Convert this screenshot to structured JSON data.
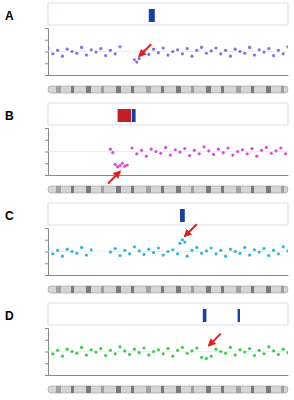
{
  "chart_data": [
    {
      "type": "scatter",
      "title": "A",
      "color": "#8a6de0",
      "xlim": [
        0,
        100
      ],
      "ylim": [
        -2,
        2
      ],
      "yticks": [
        -1,
        0,
        1
      ],
      "tick_labels": false,
      "x": [
        0,
        2,
        4,
        6,
        8,
        10,
        12,
        14,
        16,
        18,
        20,
        22,
        24,
        26,
        28,
        30,
        36,
        37,
        38,
        40,
        42,
        44,
        46,
        48,
        50,
        52,
        54,
        56,
        58,
        60,
        62,
        64,
        66,
        68,
        70,
        72,
        74,
        76,
        78,
        80,
        82,
        84,
        86,
        88,
        90,
        92,
        94,
        96,
        98,
        100
      ],
      "values": [
        0.3,
        -0.2,
        0.1,
        -0.4,
        0.2,
        0,
        -0.15,
        0.35,
        -0.3,
        0.15,
        -0.05,
        0.25,
        -0.35,
        0.1,
        -0.2,
        0.4,
        -0.7,
        -0.9,
        -0.6,
        0.05,
        -0.25,
        0.2,
        -0.1,
        0.3,
        -0.3,
        0,
        0.15,
        -0.2,
        0.25,
        -0.4,
        0.1,
        0.35,
        -0.15,
        0.05,
        0.3,
        -0.2,
        0.1,
        -0.4,
        0.2,
        0,
        -0.15,
        0.35,
        -0.3,
        0.15,
        -0.05,
        0.25,
        -0.35,
        0.1,
        -0.2,
        0.4
      ],
      "segments": [
        {
          "start": 42,
          "end": 44.5,
          "color": "#1a3fa0"
        }
      ],
      "annotations": [
        {
          "x": 38,
          "y": -0.4
        }
      ]
    },
    {
      "type": "scatter",
      "title": "B",
      "color": "#d94fd9",
      "xlim": [
        0,
        100
      ],
      "ylim": [
        -2,
        2
      ],
      "yticks": [
        -1,
        0,
        1
      ],
      "tick_labels": false,
      "x": [
        26,
        27,
        28,
        29,
        30,
        31,
        32,
        33,
        35,
        37,
        39,
        41,
        43,
        45,
        47,
        49,
        51,
        53,
        55,
        57,
        59,
        61,
        63,
        65,
        67,
        69,
        71,
        73,
        75,
        77,
        79,
        81,
        83,
        85,
        87,
        89,
        91,
        93,
        95,
        97,
        99
      ],
      "values": [
        0.2,
        -0.1,
        -1.1,
        -1.3,
        -1.2,
        -1.0,
        -1.25,
        -1.15,
        0.3,
        -0.2,
        0.1,
        -0.4,
        0.2,
        0,
        -0.15,
        0.35,
        -0.3,
        0.15,
        -0.05,
        0.25,
        -0.35,
        0.1,
        -0.2,
        0.4,
        0.05,
        -0.25,
        0.2,
        -0.1,
        0.3,
        -0.3,
        0,
        0.15,
        -0.2,
        0.25,
        -0.4,
        0.1,
        0.35,
        -0.15,
        0.05,
        0.3,
        -0.2
      ],
      "segments": [
        {
          "start": 29,
          "end": 34.7,
          "color": "#c0202a"
        },
        {
          "start": 35,
          "end": 36.5,
          "color": "#1a3fa0"
        }
      ],
      "annotations": [
        {
          "x": 30,
          "y": -1.7
        }
      ]
    },
    {
      "type": "scatter",
      "title": "C",
      "color": "#33b5d6",
      "xlim": [
        0,
        100
      ],
      "ylim": [
        -2,
        2
      ],
      "yticks": [
        -1,
        0,
        1
      ],
      "tick_labels": false,
      "x": [
        0,
        2,
        4,
        6,
        8,
        10,
        12,
        14,
        16,
        18,
        26,
        28,
        30,
        32,
        34,
        36,
        38,
        40,
        42,
        44,
        46,
        48,
        50,
        52,
        54,
        55,
        56,
        57,
        58,
        60,
        62,
        64,
        66,
        68,
        70,
        72,
        74,
        76,
        78,
        80,
        82,
        84,
        86,
        88,
        90,
        92,
        94,
        96,
        98,
        100
      ],
      "values": [
        0.3,
        -0.2,
        0.1,
        -0.4,
        0.2,
        0,
        -0.15,
        0.35,
        -0.3,
        0.15,
        -0.05,
        0.25,
        -0.35,
        0.1,
        -0.2,
        0.4,
        0.05,
        -0.25,
        0.2,
        -0.1,
        0.3,
        -0.3,
        0,
        0.15,
        -0.2,
        0.7,
        1.0,
        0.8,
        -0.4,
        0.1,
        0.35,
        -0.15,
        0.05,
        0.3,
        -0.2,
        0.1,
        -0.4,
        0.2,
        0,
        -0.15,
        0.35,
        -0.3,
        0.15,
        -0.05,
        0.25,
        -0.35,
        0.1,
        -0.2,
        0.4,
        0.05
      ],
      "segments": [
        {
          "start": 55,
          "end": 57,
          "color": "#1a3fa0"
        }
      ],
      "annotations": [
        {
          "x": 57,
          "y": 1.3
        }
      ]
    },
    {
      "type": "scatter",
      "title": "D",
      "color": "#3dcc4a",
      "xlim": [
        0,
        100
      ],
      "ylim": [
        -2,
        2
      ],
      "yticks": [
        -1,
        0,
        1
      ],
      "tick_labels": false,
      "x": [
        0,
        2,
        4,
        6,
        8,
        10,
        12,
        14,
        16,
        18,
        20,
        22,
        24,
        26,
        28,
        30,
        32,
        34,
        36,
        38,
        40,
        42,
        44,
        46,
        48,
        50,
        52,
        54,
        56,
        58,
        60,
        62,
        64,
        66,
        68,
        70,
        72,
        74,
        76,
        78,
        80,
        82,
        84,
        86,
        88,
        90,
        92,
        94,
        96,
        98,
        100
      ],
      "values": [
        0.3,
        -0.2,
        0.1,
        -0.4,
        0.2,
        0,
        -0.15,
        0.35,
        -0.3,
        0.15,
        -0.05,
        0.25,
        -0.35,
        0.1,
        -0.2,
        0.4,
        0.05,
        -0.25,
        0.2,
        -0.1,
        0.3,
        -0.3,
        0,
        0.15,
        -0.2,
        0.25,
        -0.4,
        0.1,
        0.35,
        -0.15,
        0.05,
        0.3,
        -0.5,
        -0.6,
        -0.4,
        0.2,
        0,
        -0.15,
        0.35,
        -0.3,
        0.15,
        -0.05,
        0.25,
        -0.35,
        0.1,
        -0.2,
        0.4,
        0.05,
        -0.25,
        0.2,
        -0.1
      ],
      "segments": [
        {
          "start": 64.5,
          "end": 66,
          "color": "#1a3fa0"
        },
        {
          "start": 79,
          "end": 80,
          "color": "#1a3fa0"
        }
      ],
      "annotations": [
        {
          "x": 67,
          "y": 0.5
        }
      ]
    }
  ]
}
